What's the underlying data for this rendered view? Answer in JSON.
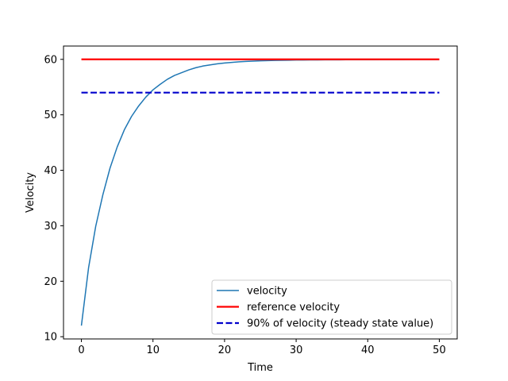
{
  "chart_data": {
    "type": "line",
    "title": "",
    "xlabel": "Time",
    "ylabel": "Velocity",
    "xlim": [
      -2.5,
      52.5
    ],
    "ylim": [
      9.6,
      62.4
    ],
    "x_ticks": [
      0,
      10,
      20,
      30,
      40,
      50
    ],
    "y_ticks": [
      10,
      20,
      30,
      40,
      50,
      60
    ],
    "grid": false,
    "legend_position": "lower-right",
    "series": [
      {
        "name": "velocity",
        "color": "#1f77b4",
        "style": "solid",
        "x": [
          0,
          1,
          2,
          3,
          4,
          5,
          6,
          7,
          8,
          9,
          10,
          11,
          12,
          13,
          14,
          15,
          16,
          17,
          18,
          19,
          20,
          21,
          22,
          23,
          24,
          25,
          26,
          27,
          28,
          29,
          30,
          31,
          32,
          33,
          34,
          35,
          36,
          37,
          38,
          39,
          40,
          41,
          42,
          43,
          44,
          45,
          46,
          47,
          48,
          49,
          50
        ],
        "y": [
          12.0,
          22.4,
          29.9,
          35.6,
          40.4,
          44.2,
          47.3,
          49.7,
          51.6,
          53.2,
          54.5,
          55.5,
          56.4,
          57.1,
          57.6,
          58.1,
          58.5,
          58.8,
          59.0,
          59.2,
          59.35,
          59.45,
          59.55,
          59.62,
          59.68,
          59.73,
          59.77,
          59.8,
          59.83,
          59.85,
          59.87,
          59.88,
          59.89,
          59.9,
          59.91,
          59.92,
          59.92,
          59.93,
          59.93,
          59.94,
          59.94,
          59.94,
          59.95,
          59.95,
          59.95,
          59.95,
          59.96,
          59.96,
          59.96,
          59.96,
          59.96
        ]
      },
      {
        "name": "reference velocity",
        "color": "#ff0000",
        "style": "solid",
        "x": [
          0,
          50
        ],
        "y": [
          60,
          60
        ]
      },
      {
        "name": "90% of velocity (steady state value)",
        "color": "#0000cc",
        "style": "dashed",
        "x": [
          0,
          50
        ],
        "y": [
          54,
          54
        ]
      }
    ]
  }
}
